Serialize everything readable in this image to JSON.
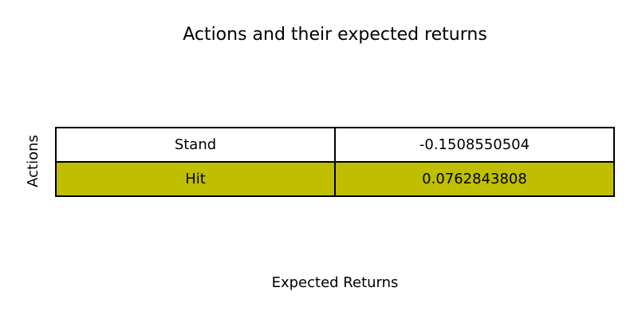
{
  "chart_data": {
    "type": "table",
    "title": "Actions and their expected returns",
    "xlabel": "Expected Returns",
    "ylabel": "Actions",
    "rows": [
      {
        "action": "Stand",
        "value": "-0.1508550504",
        "color": "#ffffff"
      },
      {
        "action": "Hit",
        "value": "0.0762843808",
        "color": "#bfbf00"
      }
    ]
  }
}
